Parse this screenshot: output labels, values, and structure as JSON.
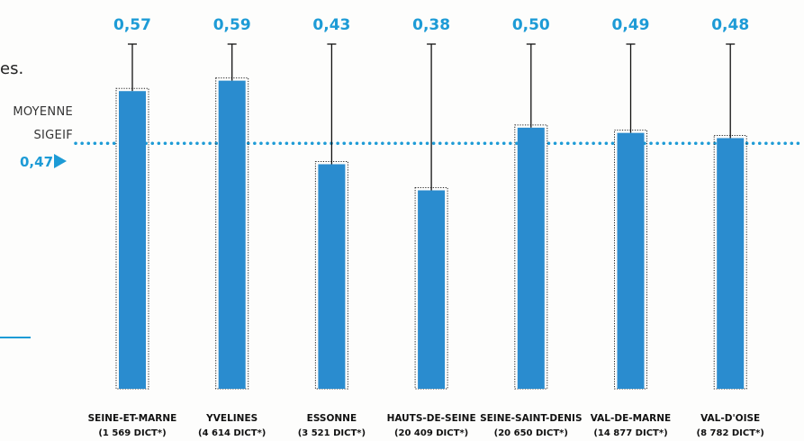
{
  "intro_fragment": "es.",
  "average": {
    "label_line1": "MOYENNE",
    "label_line2": "SIGEIF",
    "value_label": "0,47"
  },
  "colors": {
    "bar": "#2a8ccf",
    "value": "#1d9bd6",
    "whisker": "#111111",
    "average_line": "#1d9bd6"
  },
  "chart_data": {
    "type": "bar",
    "title": "",
    "xlabel": "",
    "ylabel": "",
    "ylim": [
      0,
      0.7
    ],
    "grid": false,
    "legend": "none",
    "average_value": 0.47,
    "categories": [
      {
        "name": "SEINE-ET-MARNE",
        "sub": "(1 569 DICT*)",
        "value": 0.57,
        "label": "0,57",
        "upper": 0.66
      },
      {
        "name": "YVELINES",
        "sub": "(4 614 DICT*)",
        "value": 0.59,
        "label": "0,59",
        "upper": 0.66
      },
      {
        "name": "ESSONNE",
        "sub": "(3 521 DICT*)",
        "value": 0.43,
        "label": "0,43",
        "upper": 0.66
      },
      {
        "name": "HAUTS-DE-SEINE",
        "sub": "(20 409 DICT*)",
        "value": 0.38,
        "label": "0,38",
        "upper": 0.66
      },
      {
        "name": "SEINE-SAINT-DENIS",
        "sub": "(20 650 DICT*)",
        "value": 0.5,
        "label": "0,50",
        "upper": 0.66
      },
      {
        "name": "VAL-DE-MARNE",
        "sub": "(14 877 DICT*)",
        "value": 0.49,
        "label": "0,49",
        "upper": 0.66
      },
      {
        "name": "VAL-D'OISE",
        "sub": "(8 782 DICT*)",
        "value": 0.48,
        "label": "0,48",
        "upper": 0.66
      }
    ]
  }
}
